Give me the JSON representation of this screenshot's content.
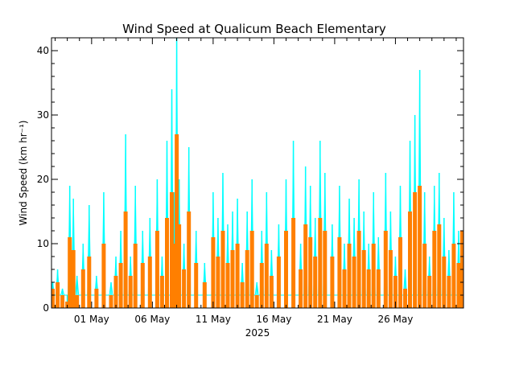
{
  "chart_data": {
    "type": "bar",
    "title": "Wind Speed at Qualicum Beach Elementary",
    "xlabel": "2025",
    "ylabel": "Wind Speed (km hr⁻¹)",
    "ylim": [
      0,
      42
    ],
    "x_range_days": [
      -2.3,
      31.6
    ],
    "x_ticks": [
      {
        "label": "01 May",
        "day": 1
      },
      {
        "label": "06 May",
        "day": 6
      },
      {
        "label": "11 May",
        "day": 11
      },
      {
        "label": "16 May",
        "day": 16
      },
      {
        "label": "21 May",
        "day": 21
      },
      {
        "label": "26 May",
        "day": 26
      }
    ],
    "y_ticks": [
      0,
      10,
      20,
      30,
      40
    ],
    "series": [
      {
        "name": "",
        "color": "#00ffff",
        "style": "line",
        "x": [
          -2.2,
          -1.8,
          -1.4,
          -1.0,
          -0.8,
          -0.5,
          -0.2,
          0.3,
          0.8,
          1.4,
          2.0,
          2.6,
          3.0,
          3.4,
          3.8,
          4.2,
          4.6,
          5.2,
          5.8,
          6.4,
          6.8,
          7.2,
          7.6,
          7.8,
          8.0,
          8.2,
          8.6,
          9.0,
          9.6,
          10.3,
          11.0,
          11.4,
          11.8,
          12.2,
          12.6,
          13.0,
          13.4,
          13.8,
          14.2,
          14.6,
          15.0,
          15.4,
          15.8,
          16.4,
          17.0,
          17.6,
          18.2,
          18.6,
          19.0,
          19.4,
          19.8,
          20.2,
          20.8,
          21.4,
          21.8,
          22.2,
          22.6,
          23.0,
          23.4,
          23.8,
          24.2,
          24.6,
          25.2,
          25.6,
          26.0,
          26.4,
          26.8,
          27.2,
          27.6,
          28.0,
          28.4,
          28.8,
          29.2,
          29.6,
          30.0,
          30.4,
          30.8,
          31.2,
          31.5
        ],
        "values": [
          4,
          6,
          3,
          2,
          19,
          17,
          5,
          10,
          16,
          5,
          18,
          4,
          8,
          12,
          27,
          8,
          19,
          12,
          14,
          20,
          8,
          26,
          34,
          18,
          42,
          20,
          10,
          25,
          12,
          7,
          18,
          14,
          21,
          13,
          15,
          17,
          7,
          15,
          20,
          4,
          12,
          18,
          9,
          13,
          20,
          26,
          10,
          22,
          19,
          14,
          26,
          21,
          13,
          19,
          10,
          17,
          14,
          20,
          15,
          10,
          18,
          11,
          21,
          15,
          8,
          19,
          6,
          26,
          30,
          37,
          18,
          8,
          19,
          21,
          14,
          9,
          18,
          12,
          4
        ]
      },
      {
        "name": "",
        "color": "#ff7f00",
        "style": "filled",
        "x": [
          -2.2,
          -1.8,
          -1.4,
          -1.0,
          -0.8,
          -0.5,
          -0.2,
          0.3,
          0.8,
          1.4,
          2.0,
          2.6,
          3.0,
          3.4,
          3.8,
          4.2,
          4.6,
          5.2,
          5.8,
          6.4,
          6.8,
          7.2,
          7.6,
          7.8,
          8.0,
          8.2,
          8.6,
          9.0,
          9.6,
          10.3,
          11.0,
          11.4,
          11.8,
          12.2,
          12.6,
          13.0,
          13.4,
          13.8,
          14.2,
          14.6,
          15.0,
          15.4,
          15.8,
          16.4,
          17.0,
          17.6,
          18.2,
          18.6,
          19.0,
          19.4,
          19.8,
          20.2,
          20.8,
          21.4,
          21.8,
          22.2,
          22.6,
          23.0,
          23.4,
          23.8,
          24.2,
          24.6,
          25.2,
          25.6,
          26.0,
          26.4,
          26.8,
          27.2,
          27.6,
          28.0,
          28.4,
          28.8,
          29.2,
          29.6,
          30.0,
          30.4,
          30.8,
          31.2,
          31.5
        ],
        "values": [
          3,
          4,
          2,
          1,
          11,
          9,
          2,
          6,
          8,
          3,
          10,
          2,
          5,
          7,
          15,
          5,
          10,
          7,
          8,
          12,
          5,
          14,
          18,
          10,
          27,
          13,
          6,
          15,
          7,
          4,
          11,
          8,
          12,
          7,
          9,
          10,
          4,
          9,
          12,
          2,
          7,
          10,
          5,
          8,
          12,
          14,
          6,
          13,
          11,
          8,
          14,
          12,
          8,
          11,
          6,
          10,
          8,
          12,
          9,
          6,
          10,
          6,
          12,
          9,
          5,
          11,
          3,
          15,
          18,
          19,
          10,
          5,
          12,
          13,
          8,
          5,
          10,
          7,
          12
        ]
      }
    ]
  }
}
